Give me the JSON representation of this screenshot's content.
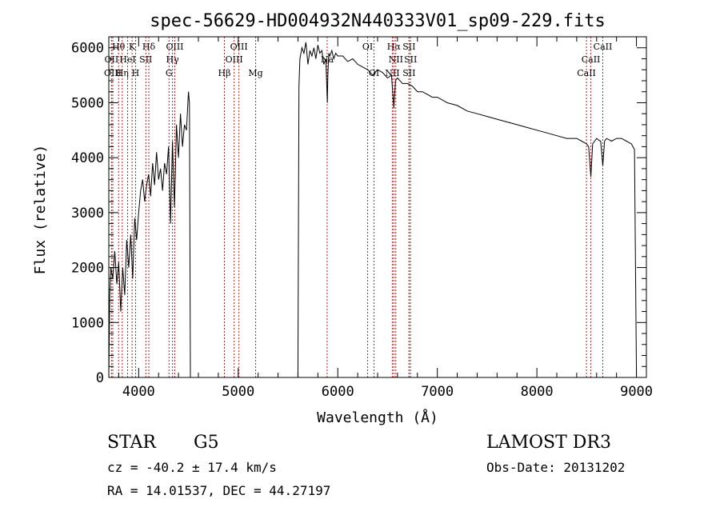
{
  "chart_data": {
    "type": "line",
    "title": "spec-56629-HD004932N440333V01_sp09-229.fits",
    "xlabel": "Wavelength (Å)",
    "ylabel": "Flux (relative)",
    "xlim": [
      3700,
      9100
    ],
    "ylim": [
      0,
      6200
    ],
    "x_ticks": [
      4000,
      5000,
      6000,
      7000,
      8000,
      9000
    ],
    "y_ticks": [
      0,
      1000,
      2000,
      3000,
      4000,
      5000,
      6000
    ],
    "x": [
      3700,
      3710,
      3720,
      3740,
      3760,
      3780,
      3800,
      3820,
      3840,
      3860,
      3880,
      3900,
      3920,
      3940,
      3960,
      3980,
      4000,
      4020,
      4040,
      4060,
      4080,
      4100,
      4120,
      4140,
      4160,
      4180,
      4200,
      4220,
      4240,
      4260,
      4280,
      4300,
      4320,
      4340,
      4360,
      4380,
      4400,
      4420,
      4440,
      4460,
      4480,
      4500,
      4510,
      4520,
      5600,
      5610,
      5620,
      5640,
      5660,
      5680,
      5700,
      5720,
      5740,
      5760,
      5780,
      5800,
      5820,
      5840,
      5860,
      5880,
      5895,
      5900,
      5910,
      5920,
      5940,
      5960,
      5980,
      6000,
      6050,
      6100,
      6150,
      6200,
      6250,
      6300,
      6350,
      6400,
      6450,
      6500,
      6540,
      6563,
      6580,
      6600,
      6650,
      6700,
      6750,
      6800,
      6850,
      6900,
      6950,
      7000,
      7100,
      7200,
      7300,
      7400,
      7500,
      7600,
      7700,
      7800,
      7900,
      8000,
      8100,
      8200,
      8300,
      8400,
      8450,
      8500,
      8520,
      8542,
      8560,
      8580,
      8600,
      8620,
      8640,
      8662,
      8680,
      8700,
      8750,
      8800,
      8850,
      8900,
      8950,
      8980,
      9000
    ],
    "y": [
      0,
      1500,
      2000,
      1800,
      2300,
      1700,
      2100,
      1200,
      2000,
      1500,
      2500,
      2000,
      2600,
      1800,
      2900,
      2500,
      3000,
      3400,
      3600,
      3200,
      3500,
      3700,
      3300,
      3900,
      3500,
      4100,
      3600,
      3800,
      3400,
      3900,
      3700,
      4200,
      2800,
      4300,
      3100,
      4600,
      4000,
      4800,
      4200,
      4600,
      4500,
      5200,
      5000,
      0,
      0,
      5300,
      5800,
      6000,
      5900,
      6100,
      5700,
      5950,
      5850,
      6000,
      5800,
      6050,
      5900,
      5950,
      5700,
      5800,
      5000,
      5500,
      5900,
      5850,
      5950,
      5800,
      5900,
      5850,
      5850,
      5750,
      5800,
      5700,
      5650,
      5600,
      5500,
      5600,
      5550,
      5450,
      5500,
      4900,
      5400,
      5450,
      5350,
      5350,
      5300,
      5200,
      5200,
      5150,
      5100,
      5100,
      5000,
      4950,
      4850,
      4800,
      4750,
      4700,
      4650,
      4600,
      4550,
      4500,
      4450,
      4400,
      4350,
      4350,
      4300,
      4250,
      4200,
      3650,
      4250,
      4300,
      4350,
      4320,
      4300,
      3850,
      4300,
      4350,
      4300,
      4350,
      4350,
      4300,
      4250,
      4150,
      0
    ],
    "lines": [
      {
        "label": "Hθ",
        "wl": 3798,
        "row": 1
      },
      {
        "label": "OII",
        "wl": 3727,
        "row": 2
      },
      {
        "label": "OIII",
        "wl": 3740,
        "row": 3
      },
      {
        "label": "K",
        "wl": 3934,
        "row": 1
      },
      {
        "label": "HeI",
        "wl": 3889,
        "row": 2
      },
      {
        "label": "Hη",
        "wl": 3835,
        "row": 3
      },
      {
        "label": "H",
        "wl": 3969,
        "row": 3
      },
      {
        "label": "SII",
        "wl": 4072,
        "row": 2
      },
      {
        "label": "Hδ",
        "wl": 4102,
        "row": 1
      },
      {
        "label": "OIII",
        "wl": 4363,
        "row": 1
      },
      {
        "label": "Hγ",
        "wl": 4340,
        "row": 2
      },
      {
        "label": "G",
        "wl": 4305,
        "row": 3
      },
      {
        "label": "OIII",
        "wl": 5007,
        "row": 1
      },
      {
        "label": "OIII",
        "wl": 4959,
        "row": 2
      },
      {
        "label": "Hβ",
        "wl": 4861,
        "row": 3
      },
      {
        "label": "Mg",
        "wl": 5175,
        "row": 3
      },
      {
        "label": "Na",
        "wl": 5893,
        "row": 2
      },
      {
        "label": "OI",
        "wl": 6300,
        "row": 1
      },
      {
        "label": "OI",
        "wl": 6364,
        "row": 3
      },
      {
        "label": "Hα",
        "wl": 6563,
        "row": 1
      },
      {
        "label": "SII",
        "wl": 6716,
        "row": 1
      },
      {
        "label": "NII",
        "wl": 6583,
        "row": 2
      },
      {
        "label": "SII",
        "wl": 6731,
        "row": 2
      },
      {
        "label": "NII",
        "wl": 6548,
        "row": 3
      },
      {
        "label": "SII",
        "wl": 6716,
        "row": 3
      },
      {
        "label": "CaII",
        "wl": 8662,
        "row": 1
      },
      {
        "label": "CaII",
        "wl": 8542,
        "row": 2
      },
      {
        "label": "CaII",
        "wl": 8498,
        "row": 3
      }
    ],
    "line_color": "#b22222"
  },
  "info": {
    "class": "STAR",
    "subclass": "G5",
    "survey": "LAMOST DR3",
    "cz": "cz = -40.2 ± 17.4 km/s",
    "obs_date": "Obs-Date: 20131202",
    "radec": "RA =  14.01537, DEC =  44.27197"
  }
}
